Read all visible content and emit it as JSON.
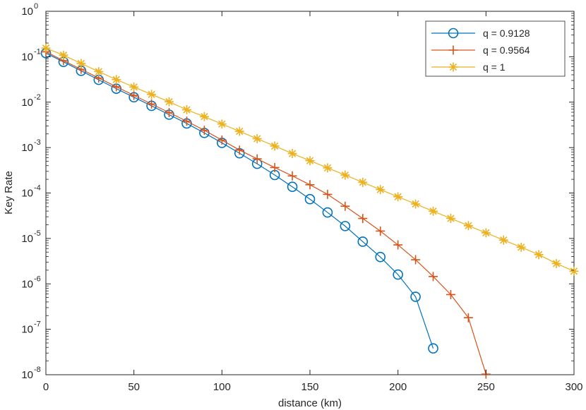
{
  "chart_data": {
    "type": "line",
    "title": "",
    "xlabel": "distance (km)",
    "ylabel": "Key Rate",
    "xlim": [
      0,
      300
    ],
    "ylim_log10": [
      -8,
      0
    ],
    "y_scale": "log",
    "grid": false,
    "legend_position": "top-right",
    "x_ticks": [
      0,
      50,
      100,
      150,
      200,
      250,
      300
    ],
    "x_tick_labels": [
      "0",
      "50",
      "100",
      "150",
      "200",
      "250",
      "300"
    ],
    "y_tick_exponents": [
      0,
      -1,
      -2,
      -3,
      -4,
      -5,
      -6,
      -7,
      -8
    ],
    "y_tick_labels": [
      {
        "base": "10",
        "exp": "0"
      },
      {
        "base": "10",
        "exp": "-1"
      },
      {
        "base": "10",
        "exp": "-2"
      },
      {
        "base": "10",
        "exp": "-3"
      },
      {
        "base": "10",
        "exp": "-4"
      },
      {
        "base": "10",
        "exp": "-5"
      },
      {
        "base": "10",
        "exp": "-6"
      },
      {
        "base": "10",
        "exp": "-7"
      },
      {
        "base": "10",
        "exp": "-8"
      }
    ],
    "series": [
      {
        "name": "q = 0.9128",
        "color": "#0072BD",
        "marker": "circle",
        "x": [
          0,
          10,
          20,
          30,
          40,
          50,
          60,
          70,
          80,
          90,
          100,
          110,
          120,
          130,
          140,
          150,
          160,
          170,
          180,
          190,
          200,
          210,
          220
        ],
        "y": [
          0.12,
          0.077,
          0.049,
          0.031,
          0.0198,
          0.0128,
          0.0083,
          0.0053,
          0.0034,
          0.0021,
          0.00127,
          0.00075,
          0.00044,
          0.000249,
          0.000137,
          7.32e-05,
          3.73e-05,
          1.87e-05,
          8.5e-06,
          3.9e-06,
          1.6e-06,
          5.2e-07,
          3.8e-08
        ]
      },
      {
        "name": "q = 0.9564",
        "color": "#D95319",
        "marker": "plus",
        "x": [
          0,
          10,
          20,
          30,
          40,
          50,
          60,
          70,
          80,
          90,
          100,
          110,
          120,
          130,
          140,
          150,
          160,
          170,
          180,
          190,
          200,
          210,
          220,
          230,
          240,
          250
        ],
        "y": [
          0.128,
          0.082,
          0.053,
          0.034,
          0.0218,
          0.0141,
          0.0091,
          0.0059,
          0.0038,
          0.0024,
          0.00146,
          0.00088,
          0.000565,
          0.000363,
          0.000238,
          0.000152,
          9.34e-05,
          5.12e-05,
          2.75e-05,
          1.45e-05,
          7.2e-06,
          3.4e-06,
          1.45e-06,
          5.8e-07,
          1.8e-07,
          1.03e-08
        ]
      },
      {
        "name": "q = 1",
        "color": "#EDB120",
        "marker": "asterisk",
        "x": [
          0,
          10,
          20,
          30,
          40,
          50,
          60,
          70,
          80,
          90,
          100,
          110,
          120,
          130,
          140,
          150,
          160,
          170,
          180,
          190,
          200,
          210,
          220,
          230,
          240,
          250,
          260,
          270,
          280,
          290,
          300
        ],
        "y": [
          0.155,
          0.108,
          0.071,
          0.047,
          0.0314,
          0.0215,
          0.0148,
          0.0102,
          0.0068,
          0.0048,
          0.0033,
          0.00228,
          0.00157,
          0.00108,
          0.00074,
          0.000514,
          0.000357,
          0.000248,
          0.000172,
          0.000119,
          8.26e-05,
          5.73e-05,
          3.97e-05,
          2.76e-05,
          1.91e-05,
          1.33e-05,
          9.2e-06,
          6.4e-06,
          4.4e-06,
          2.8e-06,
          1.9e-06
        ]
      }
    ]
  }
}
